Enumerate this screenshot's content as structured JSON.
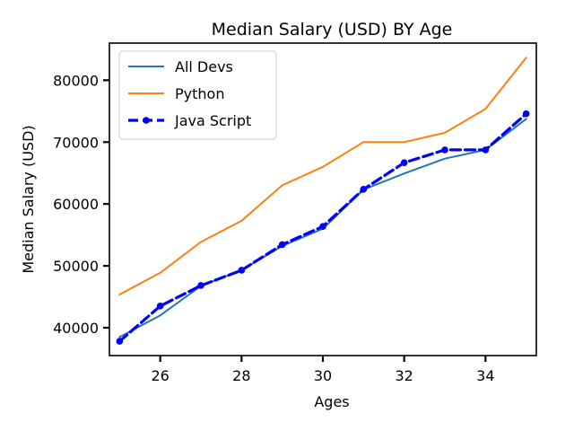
{
  "chart_data": {
    "type": "line",
    "title": "Median Salary (USD) BY Age",
    "xlabel": "Ages",
    "ylabel": "Median Salary (USD)",
    "xlim": [
      24.75,
      35.25
    ],
    "ylim": [
      35500,
      86000
    ],
    "xticks": [
      26,
      28,
      30,
      32,
      34
    ],
    "yticks": [
      40000,
      50000,
      60000,
      70000,
      80000
    ],
    "legend_position": "upper-left",
    "grid": false,
    "x": [
      25,
      26,
      27,
      28,
      29,
      30,
      31,
      32,
      33,
      34,
      35
    ],
    "series": [
      {
        "name": "All Devs",
        "color": "#1f77b4",
        "style": "solid",
        "marker": "none",
        "values": [
          38496,
          42000,
          46752,
          49320,
          53200,
          56000,
          62316,
          64928,
          67317,
          68748,
          73752
        ]
      },
      {
        "name": "Python",
        "color": "#ff7f0e",
        "style": "solid",
        "marker": "none",
        "values": [
          45372,
          48876,
          53850,
          57287,
          63016,
          65998,
          70003,
          70000,
          71496,
          75370,
          83640
        ]
      },
      {
        "name": "Java Script",
        "color": "#0000ff",
        "style": "dashed",
        "marker": "circle",
        "values": [
          37810,
          43515,
          46823,
          49293,
          53437,
          56373,
          62375,
          66674,
          68745,
          68746,
          74583
        ]
      }
    ]
  }
}
